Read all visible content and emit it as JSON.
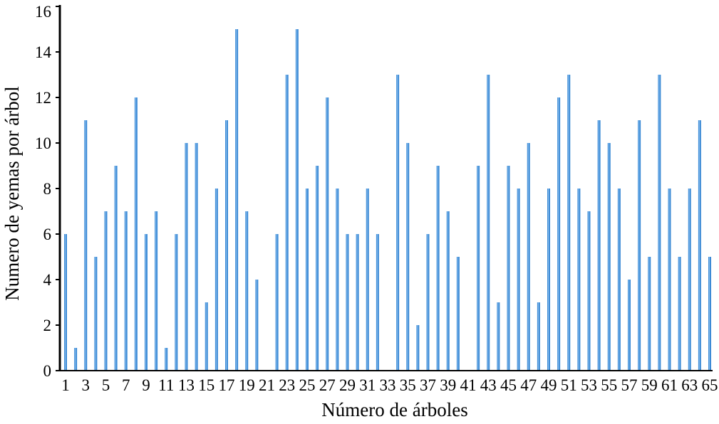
{
  "chart_data": {
    "type": "bar",
    "xlabel": "Número de árboles",
    "ylabel": "Numero de yemas por árbol",
    "ylim": [
      0,
      16
    ],
    "y_ticks": [
      0,
      2,
      4,
      6,
      8,
      10,
      12,
      14,
      16
    ],
    "categories": [
      "1",
      "2",
      "3",
      "4",
      "5",
      "6",
      "7",
      "8",
      "9",
      "10",
      "11",
      "12",
      "13",
      "14",
      "15",
      "16",
      "17",
      "18",
      "19",
      "20",
      "21",
      "22",
      "23",
      "24",
      "25",
      "26",
      "27",
      "28",
      "29",
      "30",
      "31",
      "32",
      "33",
      "34",
      "35",
      "36",
      "37",
      "38",
      "39",
      "40",
      "41",
      "42",
      "43",
      "44",
      "45",
      "46",
      "47",
      "48",
      "49",
      "50",
      "51",
      "52",
      "53",
      "54",
      "55",
      "56",
      "57",
      "58",
      "59",
      "60",
      "61",
      "62",
      "63",
      "64",
      "65"
    ],
    "x_tick_labels": [
      "1",
      "3",
      "5",
      "7",
      "9",
      "11",
      "13",
      "15",
      "17",
      "19",
      "21",
      "23",
      "25",
      "27",
      "29",
      "31",
      "33",
      "35",
      "37",
      "39",
      "41",
      "43",
      "45",
      "47",
      "49",
      "51",
      "53",
      "55",
      "57",
      "59",
      "61",
      "63",
      "65"
    ],
    "values": [
      6,
      1,
      11,
      5,
      7,
      9,
      7,
      12,
      6,
      7,
      1,
      6,
      10,
      10,
      3,
      8,
      11,
      15,
      7,
      4,
      0,
      6,
      13,
      15,
      8,
      9,
      12,
      8,
      6,
      6,
      8,
      6,
      0,
      13,
      10,
      2,
      6,
      9,
      7,
      5,
      0,
      9,
      13,
      3,
      9,
      8,
      10,
      3,
      8,
      12,
      13,
      8,
      7,
      11,
      10,
      8,
      4,
      11,
      5,
      13,
      8,
      5,
      8,
      11,
      5
    ],
    "bar_color": "#3d8bd6",
    "grid": false,
    "legend": "none"
  }
}
